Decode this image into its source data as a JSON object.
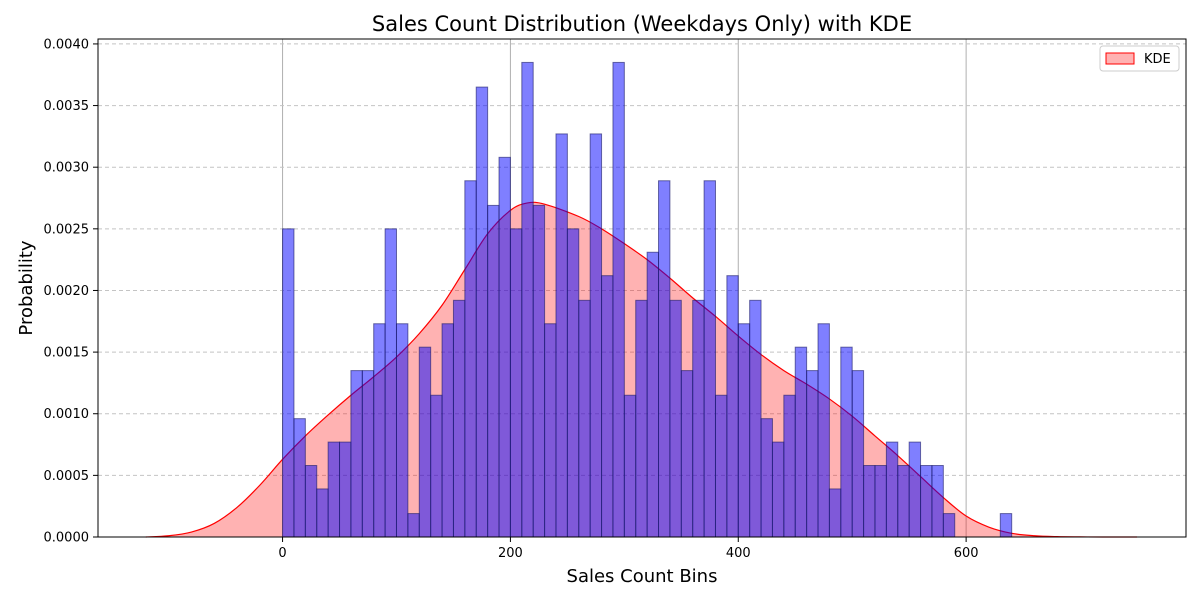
{
  "chart_data": {
    "type": "bar",
    "title": "Sales Count Distribution (Weekdays Only) with KDE",
    "xlabel": "Sales Count Bins",
    "ylabel": "Probability",
    "xlim": [
      -162,
      793
    ],
    "ylim": [
      0,
      0.00404
    ],
    "x_ticks": [
      0,
      200,
      400,
      600
    ],
    "y_ticks": [
      0.0,
      0.0005,
      0.001,
      0.0015,
      0.002,
      0.0025,
      0.003,
      0.0035,
      0.004
    ],
    "y_tick_labels": [
      "0.0000",
      "0.0005",
      "0.0010",
      "0.0015",
      "0.0020",
      "0.0025",
      "0.0030",
      "0.0035",
      "0.0040"
    ],
    "grid": {
      "x": true,
      "y": true,
      "y_style": "dashed"
    },
    "legend": {
      "position": "top-right",
      "entries": [
        "KDE"
      ]
    },
    "colors": {
      "bar_fill": "#0000ff",
      "bar_fill_opacity": 0.5,
      "bar_edge": "#1a1a66",
      "kde_line": "#ff0000",
      "kde_fill": "#ff0000",
      "kde_fill_opacity": 0.3
    },
    "histogram": {
      "bin_width": 10,
      "bin_starts": [
        0,
        10,
        20,
        30,
        40,
        50,
        60,
        70,
        80,
        90,
        100,
        110,
        120,
        130,
        140,
        150,
        160,
        170,
        180,
        190,
        200,
        210,
        220,
        230,
        240,
        250,
        260,
        270,
        280,
        290,
        300,
        310,
        320,
        330,
        340,
        350,
        360,
        370,
        380,
        390,
        400,
        410,
        420,
        430,
        440,
        450,
        460,
        470,
        480,
        490,
        500,
        510,
        520,
        530,
        540,
        550,
        560,
        570,
        580,
        590,
        600,
        610,
        620,
        630
      ],
      "values": [
        0.0025,
        0.00096,
        0.00058,
        0.00039,
        0.00077,
        0.00077,
        0.00135,
        0.00135,
        0.00173,
        0.0025,
        0.00173,
        0.00019,
        0.00154,
        0.00115,
        0.00173,
        0.00192,
        0.00289,
        0.00365,
        0.00269,
        0.00308,
        0.0025,
        0.00385,
        0.00269,
        0.00173,
        0.00327,
        0.0025,
        0.00192,
        0.00327,
        0.00212,
        0.00385,
        0.00115,
        0.00192,
        0.00231,
        0.00289,
        0.00192,
        0.00135,
        0.00192,
        0.00289,
        0.00115,
        0.00212,
        0.00173,
        0.00192,
        0.00096,
        0.00077,
        0.00115,
        0.00154,
        0.00135,
        0.00173,
        0.00039,
        0.00154,
        0.00135,
        0.00058,
        0.00058,
        0.00077,
        0.00058,
        0.00077,
        0.00058,
        0.00058,
        0.00019,
        0,
        0,
        0,
        0,
        0.00019
      ]
    },
    "kde": {
      "name": "KDE",
      "x": [
        -120,
        -100,
        -80,
        -60,
        -40,
        -20,
        0,
        20,
        40,
        60,
        80,
        100,
        120,
        140,
        160,
        180,
        200,
        215,
        230,
        260,
        280,
        300,
        320,
        340,
        360,
        380,
        400,
        420,
        440,
        460,
        480,
        500,
        520,
        540,
        560,
        580,
        600,
        620,
        640,
        660,
        680,
        700,
        720,
        750
      ],
      "y": [
        0,
        1e-05,
        4e-05,
        0.00011,
        0.00024,
        0.00042,
        0.00063,
        0.00082,
        0.00099,
        0.00115,
        0.0013,
        0.00146,
        0.00165,
        0.00188,
        0.00217,
        0.00246,
        0.00265,
        0.00271,
        0.0027,
        0.0026,
        0.0025,
        0.00238,
        0.00225,
        0.0021,
        0.00194,
        0.00179,
        0.00163,
        0.00148,
        0.00135,
        0.00124,
        0.00112,
        0.00098,
        0.00082,
        0.00066,
        0.00049,
        0.00032,
        0.00017,
        8e-05,
        3e-05,
        1e-05,
        3e-06,
        1e-06,
        0,
        0
      ]
    }
  }
}
